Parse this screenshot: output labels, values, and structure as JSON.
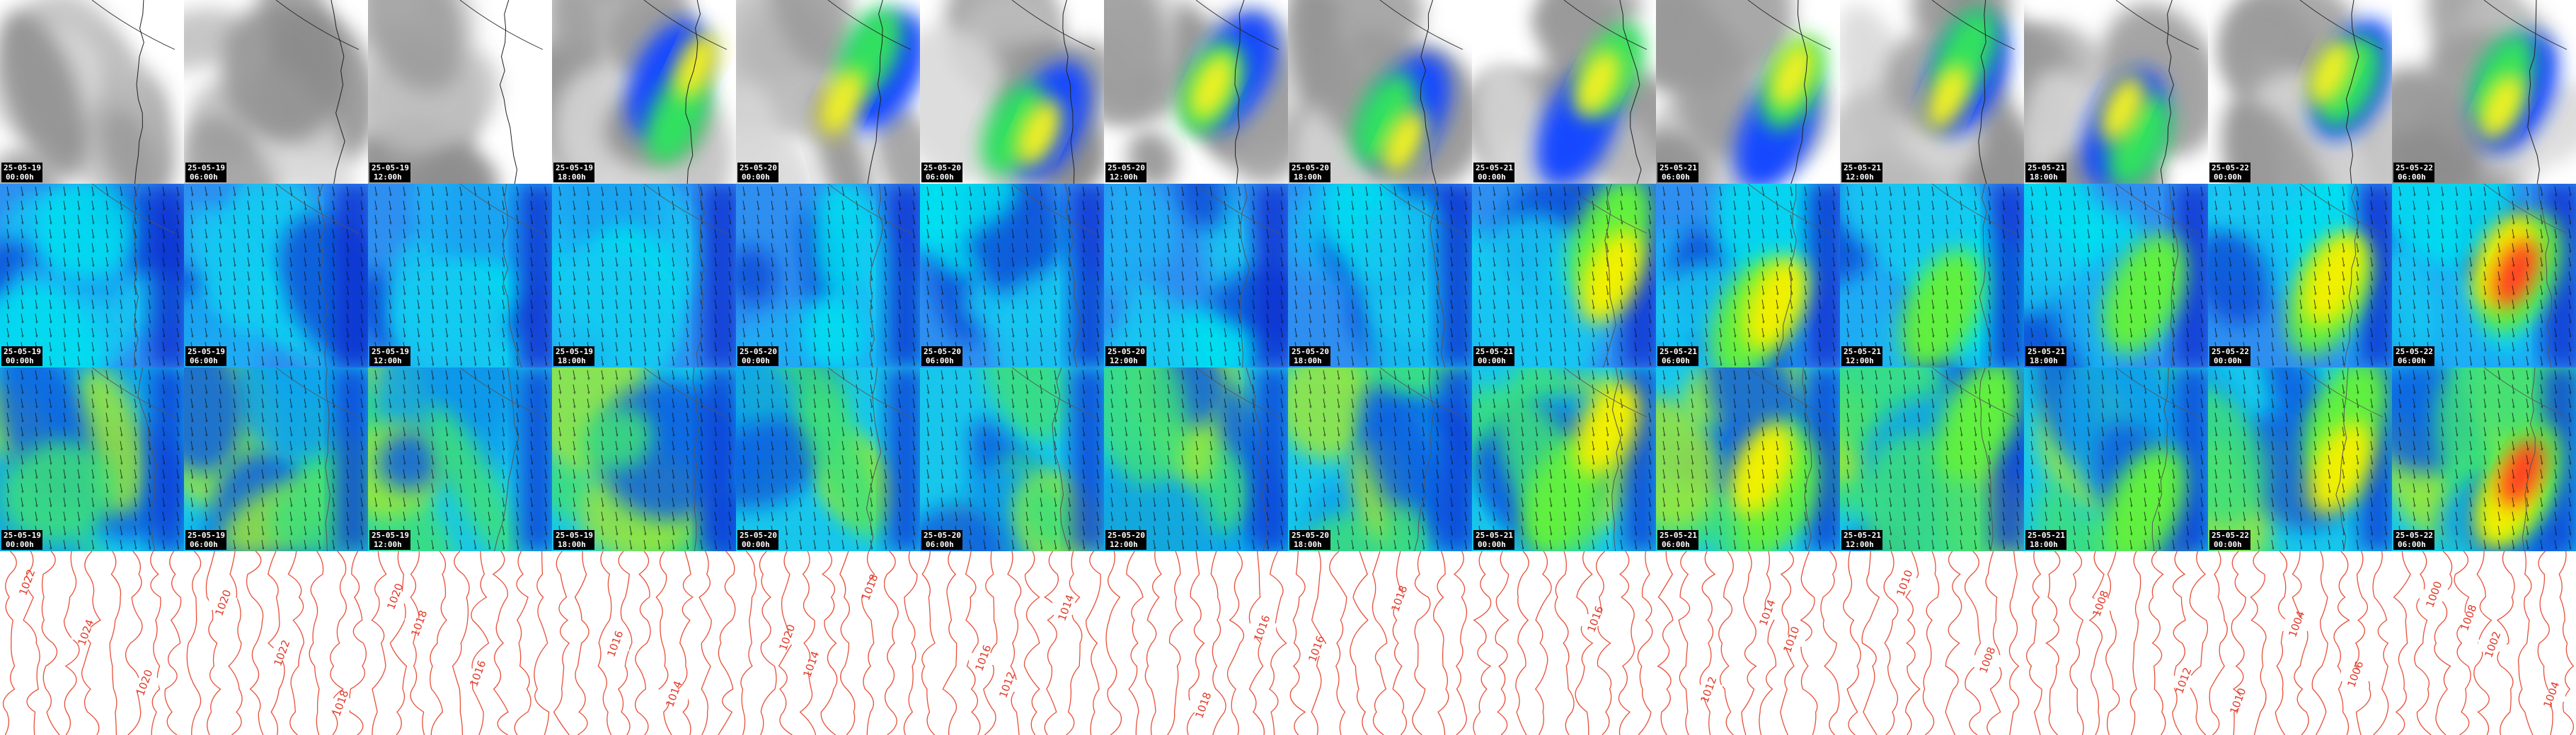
{
  "frames": [
    {
      "date": "25-05-19",
      "time": "00:00h"
    },
    {
      "date": "25-05-19",
      "time": "06:00h"
    },
    {
      "date": "25-05-19",
      "time": "12:00h"
    },
    {
      "date": "25-05-19",
      "time": "18:00h"
    },
    {
      "date": "25-05-20",
      "time": "00:00h"
    },
    {
      "date": "25-05-20",
      "time": "06:00h"
    },
    {
      "date": "25-05-20",
      "time": "12:00h"
    },
    {
      "date": "25-05-20",
      "time": "18:00h"
    },
    {
      "date": "25-05-21",
      "time": "00:00h"
    },
    {
      "date": "25-05-21",
      "time": "06:00h"
    },
    {
      "date": "25-05-21",
      "time": "12:00h"
    },
    {
      "date": "25-05-21",
      "time": "18:00h"
    },
    {
      "date": "25-05-22",
      "time": "00:00h"
    },
    {
      "date": "25-05-22",
      "time": "06:00h"
    }
  ],
  "isobars": [
    [
      "1022",
      "1024",
      "1020"
    ],
    [
      "1020",
      "1022",
      "1018"
    ],
    [
      "1018",
      "1016",
      "1020"
    ],
    [
      "1016",
      "1014"
    ],
    [
      "1014",
      "1018",
      "1020"
    ],
    [
      "1012",
      "1014",
      "1016"
    ],
    [
      "1018",
      "1016"
    ],
    [
      "1018",
      "1016"
    ],
    [
      "1016"
    ],
    [
      "1010",
      "1012",
      "1014"
    ],
    [
      "1008",
      "1010"
    ],
    [
      "1012",
      "1008"
    ],
    [
      "1010",
      "1004",
      "1006"
    ],
    [
      "1000",
      "1002",
      "1004",
      "1008"
    ]
  ]
}
